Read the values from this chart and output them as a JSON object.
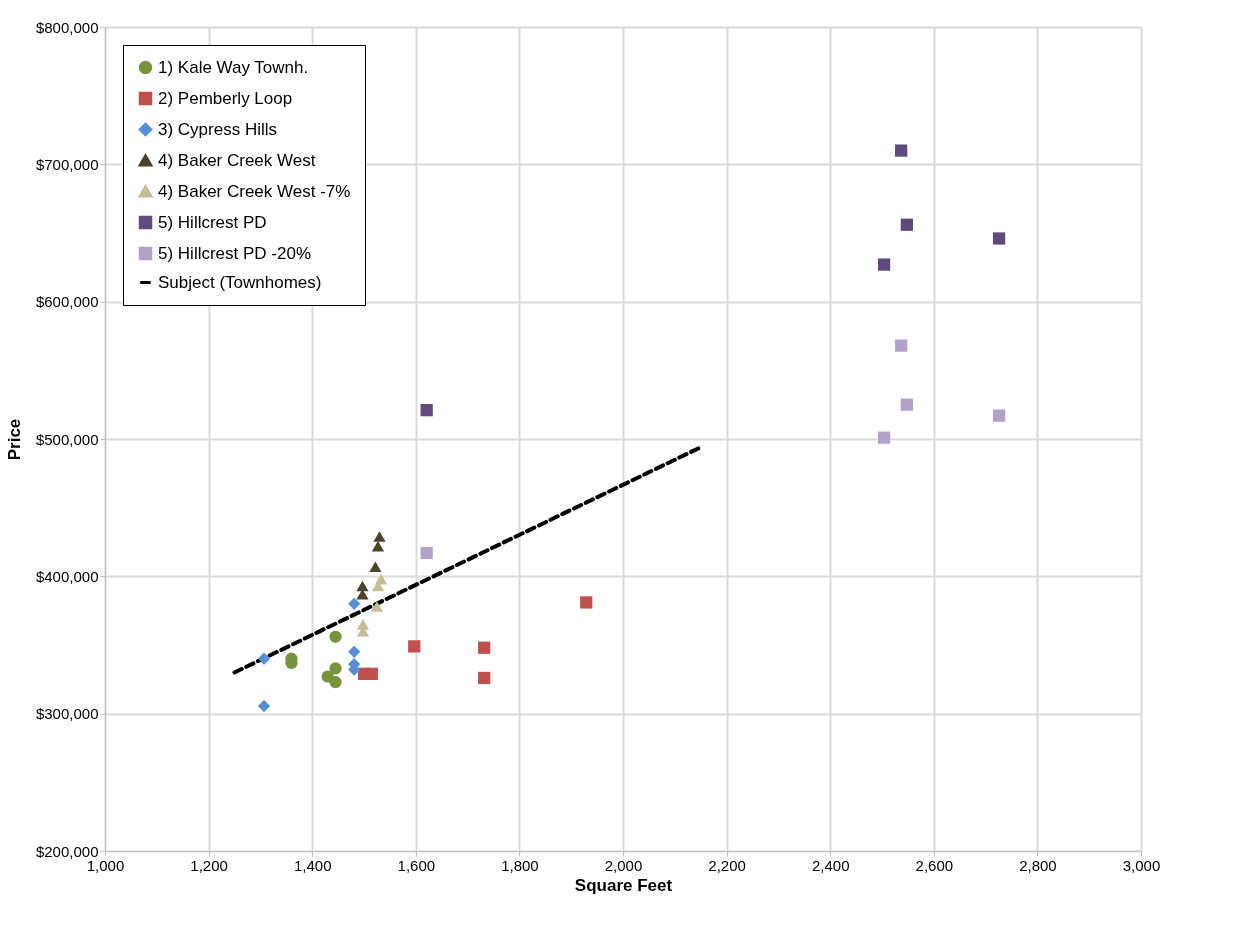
{
  "chart_data": {
    "type": "scatter",
    "xlabel": "Square Feet",
    "ylabel": "Price",
    "xlim": [
      1000,
      3000
    ],
    "xticks": [
      {
        "value": 1000,
        "label": "1,000"
      },
      {
        "value": 1200,
        "label": "1,200"
      },
      {
        "value": 1400,
        "label": "1,400"
      },
      {
        "value": 1600,
        "label": "1,600"
      },
      {
        "value": 1800,
        "label": "1,800"
      },
      {
        "value": 2000,
        "label": "2,000"
      },
      {
        "value": 2200,
        "label": "2,200"
      },
      {
        "value": 2400,
        "label": "2,400"
      },
      {
        "value": 2600,
        "label": "2,600"
      },
      {
        "value": 2800,
        "label": "2,800"
      },
      {
        "value": 3000,
        "label": "3,000"
      }
    ],
    "ylim": [
      200000,
      800000
    ],
    "yticks": [
      {
        "value": 200000,
        "label": "$200,000"
      },
      {
        "value": 300000,
        "label": "$300,000"
      },
      {
        "value": 400000,
        "label": "$400,000"
      },
      {
        "value": 500000,
        "label": "$500,000"
      },
      {
        "value": 600000,
        "label": "$600,000"
      },
      {
        "value": 700000,
        "label": "$700,000"
      },
      {
        "value": 800000,
        "label": "$800,000"
      }
    ],
    "grid": true,
    "legend": "top left",
    "series": [
      {
        "name": "1) Kale Way Townh.",
        "color": "#77933c",
        "marker": "circle",
        "x": [
          1360,
          1360,
          1445,
          1445,
          1430,
          1445
        ],
        "values": [
          340000,
          337000,
          356000,
          333000,
          327000,
          323000
        ]
      },
      {
        "name": "2) Pemberly Loop",
        "color": "#c0504d",
        "marker": "square",
        "x": [
          1500,
          1515,
          1597,
          1732,
          1732,
          1929
        ],
        "values": [
          329000,
          329000,
          349000,
          348000,
          326000,
          381000
        ]
      },
      {
        "name": "3) Cypress Hills",
        "color": "#558ed5",
        "marker": "diamond",
        "x": [
          1307,
          1307,
          1481,
          1481,
          1481,
          1481
        ],
        "values": [
          340000,
          305500,
          380000,
          345000,
          336000,
          332000
        ]
      },
      {
        "name": "4) Baker Creek West",
        "color": "#4a452a",
        "marker": "triangle",
        "x": [
          1530,
          1527,
          1522,
          1497,
          1497
        ],
        "values": [
          429000,
          422000,
          407000,
          393000,
          387000
        ]
      },
      {
        "name": "4) Baker Creek West -7%",
        "color": "#c4bd97",
        "marker": "triangle",
        "x": [
          1533,
          1527,
          1525,
          1498,
          1498
        ],
        "values": [
          398000,
          393000,
          378000,
          365000,
          360000
        ]
      },
      {
        "name": "5) Hillcrest PD",
        "color": "#604a7b",
        "marker": "square",
        "x": [
          2537,
          2548,
          2504,
          2726,
          1621
        ],
        "values": [
          710000,
          656000,
          627000,
          646000,
          521000
        ]
      },
      {
        "name": "5) Hillcrest PD -20%",
        "color": "#b3a2c7",
        "marker": "square",
        "x": [
          2537,
          2548,
          2504,
          2726,
          1621
        ],
        "values": [
          568000,
          525000,
          501000,
          517000,
          417000
        ]
      },
      {
        "name": "Subject (Townhomes)",
        "color": "#000000",
        "type": "line",
        "line_style": "dashed",
        "marker": "none",
        "x": [
          1250,
          2150
        ],
        "values": [
          330000,
          494000
        ]
      }
    ]
  }
}
